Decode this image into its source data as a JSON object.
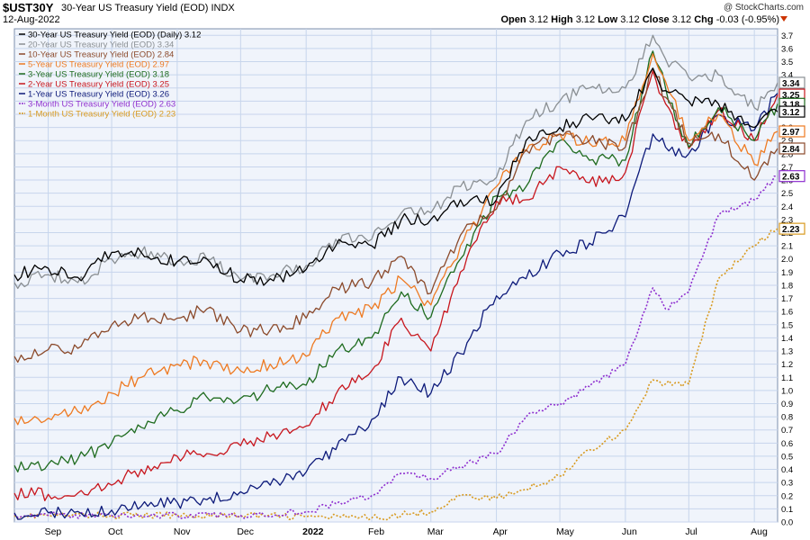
{
  "header": {
    "symbol": "$UST30Y",
    "subtitle": "30-Year US Treasury Yield (EOD)  INDX",
    "date": "12-Aug-2022",
    "copyright": "@ StockCharts.com",
    "open_label": "Open",
    "open": "3.12",
    "high_label": "High",
    "high": "3.12",
    "low_label": "Low",
    "low": "3.12",
    "close_label": "Close",
    "close": "3.12",
    "chg_label": "Chg",
    "chg": "-0.03 (-0.95%)"
  },
  "colors": {
    "plot_bg": "#f0f4fb",
    "grid": "#c7d5ec",
    "y30": "#000000",
    "y20": "#8a8f93",
    "y10": "#8b4a2b",
    "y5": "#ee7a22",
    "y3": "#1e6b1e",
    "y2": "#c8161d",
    "y1": "#0d1a7a",
    "m3": "#8e2fcf",
    "m1": "#d89a1f"
  },
  "chart_data": {
    "type": "line",
    "y_axis_side": "right",
    "ylim": [
      0.0,
      3.75
    ],
    "yticks": [
      0.0,
      0.1,
      0.2,
      0.3,
      0.4,
      0.5,
      0.6,
      0.7,
      0.8,
      0.9,
      1.0,
      1.1,
      1.2,
      1.3,
      1.4,
      1.5,
      1.6,
      1.7,
      1.8,
      1.9,
      2.0,
      2.1,
      2.2,
      2.3,
      2.4,
      2.5,
      2.6,
      2.7,
      2.8,
      2.9,
      3.0,
      3.1,
      3.2,
      3.3,
      3.4,
      3.5,
      3.6,
      3.7
    ],
    "xlim": [
      "2021-08-16",
      "2022-08-12"
    ],
    "x_ticks": [
      {
        "date": "2021-09-01",
        "label": "Sep"
      },
      {
        "date": "2021-10-01",
        "label": "Oct"
      },
      {
        "date": "2021-11-01",
        "label": "Nov"
      },
      {
        "date": "2021-12-01",
        "label": "Dec"
      },
      {
        "date": "2022-01-01",
        "label": "2022",
        "bold": true
      },
      {
        "date": "2022-02-01",
        "label": "Feb"
      },
      {
        "date": "2022-03-01",
        "label": "Mar"
      },
      {
        "date": "2022-04-01",
        "label": "Apr"
      },
      {
        "date": "2022-05-01",
        "label": "May"
      },
      {
        "date": "2022-06-01",
        "label": "Jun"
      },
      {
        "date": "2022-07-01",
        "label": "Jul"
      },
      {
        "date": "2022-08-01",
        "label": "Aug"
      }
    ],
    "legend_position": "top-left",
    "series": [
      {
        "key": "y30",
        "name": "30-Year US Treasury Yield (EOD) (Daily)",
        "last": "3.12",
        "dashed": false,
        "points": [
          [
            "2021-08-16",
            1.88
          ],
          [
            "2021-09-01",
            1.93
          ],
          [
            "2021-09-15",
            1.86
          ],
          [
            "2021-10-01",
            2.05
          ],
          [
            "2021-10-15",
            2.05
          ],
          [
            "2021-11-01",
            1.98
          ],
          [
            "2021-11-15",
            2.0
          ],
          [
            "2021-12-01",
            1.84
          ],
          [
            "2021-12-15",
            1.85
          ],
          [
            "2022-01-01",
            1.92
          ],
          [
            "2022-01-15",
            2.1
          ],
          [
            "2022-02-01",
            2.1
          ],
          [
            "2022-02-15",
            2.3
          ],
          [
            "2022-03-01",
            2.3
          ],
          [
            "2022-03-15",
            2.45
          ],
          [
            "2022-04-01",
            2.45
          ],
          [
            "2022-04-15",
            2.9
          ],
          [
            "2022-05-01",
            3.0
          ],
          [
            "2022-05-15",
            3.08
          ],
          [
            "2022-06-01",
            3.05
          ],
          [
            "2022-06-14",
            3.45
          ],
          [
            "2022-06-20",
            3.28
          ],
          [
            "2022-07-01",
            3.2
          ],
          [
            "2022-07-15",
            3.18
          ],
          [
            "2022-08-01",
            3.0
          ],
          [
            "2022-08-12",
            3.12
          ]
        ]
      },
      {
        "key": "y20",
        "name": "20-Year US Treasury Yield (EOD)",
        "last": "3.34",
        "dashed": false,
        "points": [
          [
            "2021-08-16",
            1.82
          ],
          [
            "2021-09-01",
            1.88
          ],
          [
            "2021-09-15",
            1.82
          ],
          [
            "2021-10-01",
            2.0
          ],
          [
            "2021-10-15",
            2.05
          ],
          [
            "2021-11-01",
            1.98
          ],
          [
            "2021-11-15",
            2.0
          ],
          [
            "2021-12-01",
            1.84
          ],
          [
            "2021-12-15",
            1.87
          ],
          [
            "2022-01-01",
            1.95
          ],
          [
            "2022-01-15",
            2.15
          ],
          [
            "2022-02-01",
            2.15
          ],
          [
            "2022-02-15",
            2.35
          ],
          [
            "2022-03-01",
            2.35
          ],
          [
            "2022-03-15",
            2.55
          ],
          [
            "2022-04-01",
            2.62
          ],
          [
            "2022-04-15",
            3.05
          ],
          [
            "2022-05-01",
            3.2
          ],
          [
            "2022-05-15",
            3.3
          ],
          [
            "2022-06-01",
            3.3
          ],
          [
            "2022-06-14",
            3.7
          ],
          [
            "2022-06-20",
            3.52
          ],
          [
            "2022-07-01",
            3.38
          ],
          [
            "2022-07-15",
            3.4
          ],
          [
            "2022-08-01",
            3.15
          ],
          [
            "2022-08-12",
            3.34
          ]
        ]
      },
      {
        "key": "y10",
        "name": "10-Year US Treasury Yield (EOD)",
        "last": "2.84",
        "dashed": false,
        "points": [
          [
            "2021-08-16",
            1.26
          ],
          [
            "2021-09-01",
            1.31
          ],
          [
            "2021-09-15",
            1.32
          ],
          [
            "2021-10-01",
            1.5
          ],
          [
            "2021-10-15",
            1.57
          ],
          [
            "2021-11-01",
            1.55
          ],
          [
            "2021-11-15",
            1.62
          ],
          [
            "2021-12-01",
            1.45
          ],
          [
            "2021-12-15",
            1.46
          ],
          [
            "2022-01-01",
            1.55
          ],
          [
            "2022-01-15",
            1.78
          ],
          [
            "2022-02-01",
            1.82
          ],
          [
            "2022-02-15",
            2.02
          ],
          [
            "2022-03-01",
            1.74
          ],
          [
            "2022-03-15",
            2.18
          ],
          [
            "2022-04-01",
            2.38
          ],
          [
            "2022-04-15",
            2.83
          ],
          [
            "2022-05-01",
            2.95
          ],
          [
            "2022-05-15",
            2.9
          ],
          [
            "2022-06-01",
            2.85
          ],
          [
            "2022-06-14",
            3.45
          ],
          [
            "2022-06-20",
            3.23
          ],
          [
            "2022-07-01",
            2.88
          ],
          [
            "2022-07-15",
            2.95
          ],
          [
            "2022-08-01",
            2.6
          ],
          [
            "2022-08-12",
            2.84
          ]
        ]
      },
      {
        "key": "y5",
        "name": "5-Year US Treasury Yield (EOD)",
        "last": "2.97",
        "dashed": false,
        "points": [
          [
            "2021-08-16",
            0.79
          ],
          [
            "2021-09-01",
            0.79
          ],
          [
            "2021-09-15",
            0.84
          ],
          [
            "2021-10-01",
            0.98
          ],
          [
            "2021-10-15",
            1.1
          ],
          [
            "2021-11-01",
            1.2
          ],
          [
            "2021-11-15",
            1.22
          ],
          [
            "2021-12-01",
            1.15
          ],
          [
            "2021-12-15",
            1.2
          ],
          [
            "2022-01-01",
            1.26
          ],
          [
            "2022-01-15",
            1.55
          ],
          [
            "2022-02-01",
            1.62
          ],
          [
            "2022-02-15",
            1.85
          ],
          [
            "2022-03-01",
            1.65
          ],
          [
            "2022-03-15",
            2.1
          ],
          [
            "2022-04-01",
            2.55
          ],
          [
            "2022-04-15",
            2.82
          ],
          [
            "2022-05-01",
            2.95
          ],
          [
            "2022-05-15",
            2.88
          ],
          [
            "2022-06-01",
            2.9
          ],
          [
            "2022-06-14",
            3.56
          ],
          [
            "2022-06-20",
            3.35
          ],
          [
            "2022-07-01",
            2.9
          ],
          [
            "2022-07-15",
            3.1
          ],
          [
            "2022-08-01",
            2.72
          ],
          [
            "2022-08-12",
            2.97
          ]
        ]
      },
      {
        "key": "y3",
        "name": "3-Year US Treasury Yield (EOD)",
        "last": "3.18",
        "dashed": false,
        "points": [
          [
            "2021-08-16",
            0.43
          ],
          [
            "2021-09-01",
            0.44
          ],
          [
            "2021-09-15",
            0.48
          ],
          [
            "2021-10-01",
            0.6
          ],
          [
            "2021-10-15",
            0.72
          ],
          [
            "2021-11-01",
            0.85
          ],
          [
            "2021-11-15",
            0.95
          ],
          [
            "2021-12-01",
            0.94
          ],
          [
            "2021-12-15",
            1.0
          ],
          [
            "2022-01-01",
            1.04
          ],
          [
            "2022-01-15",
            1.3
          ],
          [
            "2022-02-01",
            1.4
          ],
          [
            "2022-02-15",
            1.75
          ],
          [
            "2022-03-01",
            1.56
          ],
          [
            "2022-03-15",
            2.0
          ],
          [
            "2022-04-01",
            2.48
          ],
          [
            "2022-04-15",
            2.55
          ],
          [
            "2022-05-01",
            2.9
          ],
          [
            "2022-05-15",
            2.75
          ],
          [
            "2022-06-01",
            2.75
          ],
          [
            "2022-06-14",
            3.58
          ],
          [
            "2022-06-20",
            3.3
          ],
          [
            "2022-07-01",
            2.85
          ],
          [
            "2022-07-15",
            3.15
          ],
          [
            "2022-08-01",
            2.9
          ],
          [
            "2022-08-12",
            3.18
          ]
        ]
      },
      {
        "key": "y2",
        "name": "2-Year US Treasury Yield (EOD)",
        "last": "3.25",
        "dashed": false,
        "points": [
          [
            "2021-08-16",
            0.22
          ],
          [
            "2021-09-01",
            0.21
          ],
          [
            "2021-09-15",
            0.22
          ],
          [
            "2021-10-01",
            0.28
          ],
          [
            "2021-10-15",
            0.4
          ],
          [
            "2021-11-01",
            0.5
          ],
          [
            "2021-11-15",
            0.52
          ],
          [
            "2021-12-01",
            0.58
          ],
          [
            "2021-12-15",
            0.65
          ],
          [
            "2022-01-01",
            0.73
          ],
          [
            "2022-01-15",
            0.97
          ],
          [
            "2022-02-01",
            1.15
          ],
          [
            "2022-02-15",
            1.55
          ],
          [
            "2022-03-01",
            1.3
          ],
          [
            "2022-03-15",
            1.9
          ],
          [
            "2022-04-01",
            2.44
          ],
          [
            "2022-04-15",
            2.45
          ],
          [
            "2022-05-01",
            2.7
          ],
          [
            "2022-05-15",
            2.58
          ],
          [
            "2022-06-01",
            2.66
          ],
          [
            "2022-06-14",
            3.43
          ],
          [
            "2022-06-20",
            3.18
          ],
          [
            "2022-07-01",
            2.84
          ],
          [
            "2022-07-15",
            3.13
          ],
          [
            "2022-08-01",
            2.9
          ],
          [
            "2022-08-12",
            3.25
          ]
        ]
      },
      {
        "key": "y1",
        "name": "1-Year US Treasury Yield (EOD)",
        "last": "3.26",
        "dashed": false,
        "points": [
          [
            "2021-08-16",
            0.07
          ],
          [
            "2021-09-01",
            0.07
          ],
          [
            "2021-09-15",
            0.08
          ],
          [
            "2021-10-01",
            0.09
          ],
          [
            "2021-10-15",
            0.12
          ],
          [
            "2021-11-01",
            0.15
          ],
          [
            "2021-11-15",
            0.17
          ],
          [
            "2021-12-01",
            0.23
          ],
          [
            "2021-12-15",
            0.28
          ],
          [
            "2022-01-01",
            0.38
          ],
          [
            "2022-01-15",
            0.55
          ],
          [
            "2022-02-01",
            0.78
          ],
          [
            "2022-02-15",
            1.1
          ],
          [
            "2022-03-01",
            0.98
          ],
          [
            "2022-03-15",
            1.28
          ],
          [
            "2022-04-01",
            1.72
          ],
          [
            "2022-04-15",
            1.85
          ],
          [
            "2022-05-01",
            2.05
          ],
          [
            "2022-05-15",
            2.12
          ],
          [
            "2022-06-01",
            2.32
          ],
          [
            "2022-06-14",
            2.95
          ],
          [
            "2022-06-20",
            2.85
          ],
          [
            "2022-07-01",
            2.8
          ],
          [
            "2022-07-15",
            3.1
          ],
          [
            "2022-08-01",
            2.98
          ],
          [
            "2022-08-12",
            3.26
          ]
        ]
      },
      {
        "key": "m3",
        "name": "3-Month US Treasury Yield (EOD)",
        "last": "2.63",
        "dashed": true,
        "points": [
          [
            "2021-08-16",
            0.06
          ],
          [
            "2021-09-01",
            0.05
          ],
          [
            "2021-10-01",
            0.05
          ],
          [
            "2021-11-01",
            0.05
          ],
          [
            "2021-12-01",
            0.05
          ],
          [
            "2022-01-01",
            0.08
          ],
          [
            "2022-01-15",
            0.14
          ],
          [
            "2022-02-01",
            0.2
          ],
          [
            "2022-02-15",
            0.37
          ],
          [
            "2022-03-01",
            0.33
          ],
          [
            "2022-03-15",
            0.42
          ],
          [
            "2022-04-01",
            0.52
          ],
          [
            "2022-04-15",
            0.8
          ],
          [
            "2022-05-01",
            0.9
          ],
          [
            "2022-05-15",
            1.03
          ],
          [
            "2022-06-01",
            1.2
          ],
          [
            "2022-06-14",
            1.78
          ],
          [
            "2022-06-20",
            1.62
          ],
          [
            "2022-07-01",
            1.75
          ],
          [
            "2022-07-15",
            2.33
          ],
          [
            "2022-08-01",
            2.45
          ],
          [
            "2022-08-12",
            2.63
          ]
        ]
      },
      {
        "key": "m1",
        "name": "1-Month US Treasury Yield (EOD)",
        "last": "2.23",
        "dashed": true,
        "points": [
          [
            "2021-08-16",
            0.05
          ],
          [
            "2021-09-01",
            0.05
          ],
          [
            "2021-10-01",
            0.05
          ],
          [
            "2021-11-01",
            0.05
          ],
          [
            "2021-12-01",
            0.05
          ],
          [
            "2022-01-01",
            0.04
          ],
          [
            "2022-02-01",
            0.03
          ],
          [
            "2022-03-01",
            0.08
          ],
          [
            "2022-03-15",
            0.2
          ],
          [
            "2022-04-01",
            0.18
          ],
          [
            "2022-04-15",
            0.25
          ],
          [
            "2022-05-01",
            0.35
          ],
          [
            "2022-05-15",
            0.55
          ],
          [
            "2022-06-01",
            0.7
          ],
          [
            "2022-06-14",
            1.08
          ],
          [
            "2022-06-20",
            1.05
          ],
          [
            "2022-07-01",
            1.05
          ],
          [
            "2022-07-15",
            1.85
          ],
          [
            "2022-08-01",
            2.1
          ],
          [
            "2022-08-12",
            2.23
          ]
        ]
      }
    ],
    "label_order": [
      "y20",
      "y2",
      "y3",
      "y30",
      "y5",
      "y10",
      "m3",
      "m1"
    ]
  }
}
